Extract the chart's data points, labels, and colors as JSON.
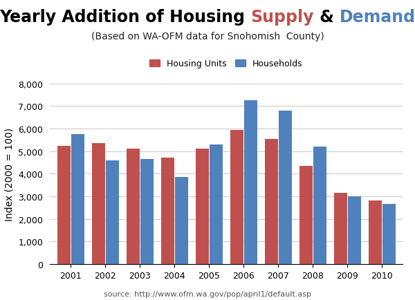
{
  "title_parts": [
    {
      "text": "Yearly Addition of Housing ",
      "color": "#000000"
    },
    {
      "text": "Supply",
      "color": "#C0504D"
    },
    {
      "text": " & ",
      "color": "#000000"
    },
    {
      "text": "Demand",
      "color": "#4F81BD"
    }
  ],
  "subtitle": "(Based on WA-OFM data for Snohomish  County)",
  "source": "source: http://www.ofm.wa.gov/pop/april1/default.asp",
  "years": [
    2001,
    2002,
    2003,
    2004,
    2005,
    2006,
    2007,
    2008,
    2009,
    2010
  ],
  "housing_units": [
    5250,
    5350,
    5125,
    4700,
    5100,
    5950,
    5550,
    4350,
    3150,
    2800
  ],
  "households": [
    5750,
    4600,
    4650,
    3850,
    5300,
    7250,
    6800,
    5200,
    3000,
    2650
  ],
  "bar_color_supply": "#C0504D",
  "bar_color_demand": "#4F81BD",
  "ylabel": "Index (2000 = 100)",
  "ylim": [
    0,
    8000
  ],
  "yticks": [
    0,
    1000,
    2000,
    3000,
    4000,
    5000,
    6000,
    7000,
    8000
  ],
  "legend_supply_label": "Housing Units",
  "legend_demand_label": "Households",
  "background_color": "#FFFFFF",
  "grid_color": "#CCCCCC",
  "title_fontsize": 17,
  "subtitle_fontsize": 10,
  "axis_label_fontsize": 10,
  "tick_fontsize": 9,
  "source_fontsize": 8
}
